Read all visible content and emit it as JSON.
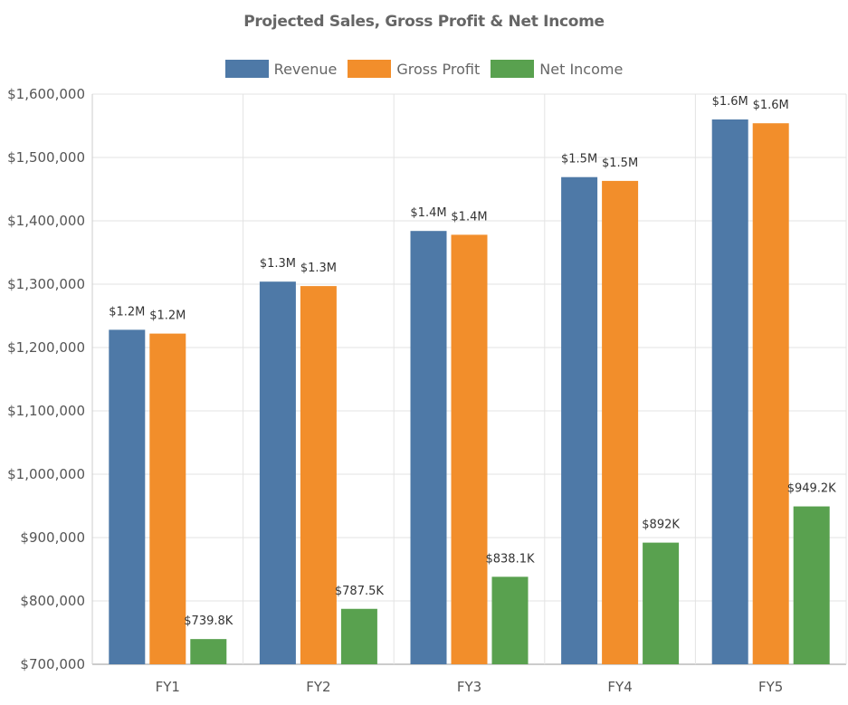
{
  "chart_data": {
    "type": "bar",
    "title": "Projected Sales, Gross Profit & Net Income",
    "categories": [
      "FY1",
      "FY2",
      "FY3",
      "FY4",
      "FY5"
    ],
    "series": [
      {
        "name": "Revenue",
        "color": "#4e79a7",
        "values": [
          1228000,
          1304000,
          1384000,
          1469000,
          1560000
        ],
        "labels": [
          "$1.2M",
          "$1.3M",
          "$1.4M",
          "$1.5M",
          "$1.6M"
        ]
      },
      {
        "name": "Gross Profit",
        "color": "#f28e2b",
        "values": [
          1222000,
          1297000,
          1378000,
          1463000,
          1554000
        ],
        "labels": [
          "$1.2M",
          "$1.3M",
          "$1.4M",
          "$1.5M",
          "$1.6M"
        ]
      },
      {
        "name": "Net Income",
        "color": "#59a14f",
        "values": [
          739800,
          787500,
          838100,
          892000,
          949200
        ],
        "labels": [
          "$739.8K",
          "$787.5K",
          "$838.1K",
          "$892K",
          "$949.2K"
        ]
      }
    ],
    "ylim": [
      700000,
      1600000
    ],
    "yticks": [
      "$700,000",
      "$800,000",
      "$900,000",
      "$1,000,000",
      "$1,100,000",
      "$1,200,000",
      "$1,300,000",
      "$1,400,000",
      "$1,500,000",
      "$1,600,000"
    ],
    "xlabel": "",
    "ylabel": "",
    "grid": true,
    "legend_position": "top"
  }
}
